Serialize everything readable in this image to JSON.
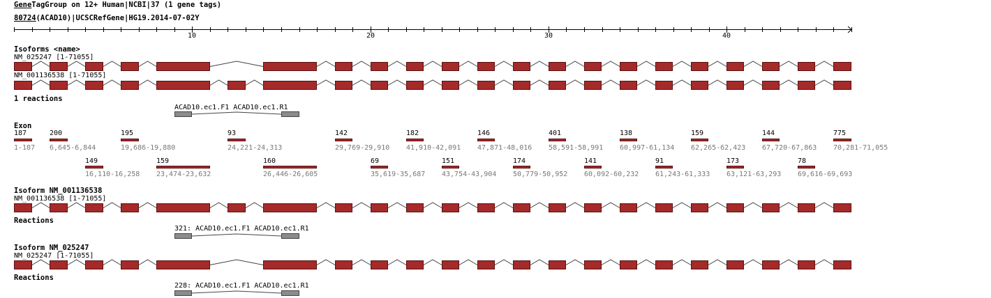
{
  "header": {
    "line1_a": "Gene",
    "line1_b": "TagGroup on 12+ Human|NCBI|37 (1 gene tags)",
    "line2_a": "80724",
    "line2_b": "(ACAD10)|UCSCRefGene|HG19.2014-07-02",
    "line2_c": "Y"
  },
  "axis": {
    "min": 0,
    "max": 47,
    "labels": [
      "10",
      "20",
      "30",
      "40"
    ]
  },
  "sections": {
    "isoforms_title": "Isoforms <name>",
    "reactions_count": "1 reactions",
    "exon_title": "Exon",
    "isoform2_title": "Isoform NM_001136538",
    "reactions1_title": "Reactions",
    "isoform1_title": "Isoform NM_025247",
    "reactions2_title": "Reactions"
  },
  "transcripts": {
    "t1_label": "NM_025247 [1-71055]",
    "t2_label": "NM_001136538 [1-71055]"
  },
  "reactions": {
    "top_label": "ACAD10.ec1.F1 ACAD10.ec1.R1",
    "r1_label": "321: ACAD10.ec1.F1 ACAD10.ec1.R1",
    "r2_label": "228: ACAD10.ec1.F1 ACAD10.ec1.R1"
  },
  "exons_row1": [
    {
      "len": "187",
      "range": "1-187"
    },
    {
      "len": "200",
      "range": "6,645-6,844"
    },
    {
      "len": "195",
      "range": "19,686-19,880"
    },
    {
      "len": "93",
      "range": "24,221-24,313"
    },
    {
      "len": "142",
      "range": "29,769-29,910"
    },
    {
      "len": "182",
      "range": "41,910-42,091"
    },
    {
      "len": "146",
      "range": "47,871-48,016"
    },
    {
      "len": "401",
      "range": "58,591-58,991"
    },
    {
      "len": "138",
      "range": "60,997-61,134"
    },
    {
      "len": "159",
      "range": "62,265-62,423"
    },
    {
      "len": "144",
      "range": "67,720-67,863"
    },
    {
      "len": "775",
      "range": "70,281-71,055"
    }
  ],
  "exons_row2": [
    {
      "len": "149",
      "range": "16,110-16,258"
    },
    {
      "len": "159",
      "range": "23,474-23,632"
    },
    {
      "len": "160",
      "range": "26,446-26,605"
    },
    {
      "len": "69",
      "range": "35,619-35,687"
    },
    {
      "len": "151",
      "range": "43,754-43,904"
    },
    {
      "len": "174",
      "range": "50,779-50,952"
    },
    {
      "len": "141",
      "range": "60,092-60,232"
    },
    {
      "len": "91",
      "range": "61,243-61,333"
    },
    {
      "len": "173",
      "range": "63,121-63,293"
    },
    {
      "len": "78",
      "range": "69,616-69,693"
    }
  ]
}
